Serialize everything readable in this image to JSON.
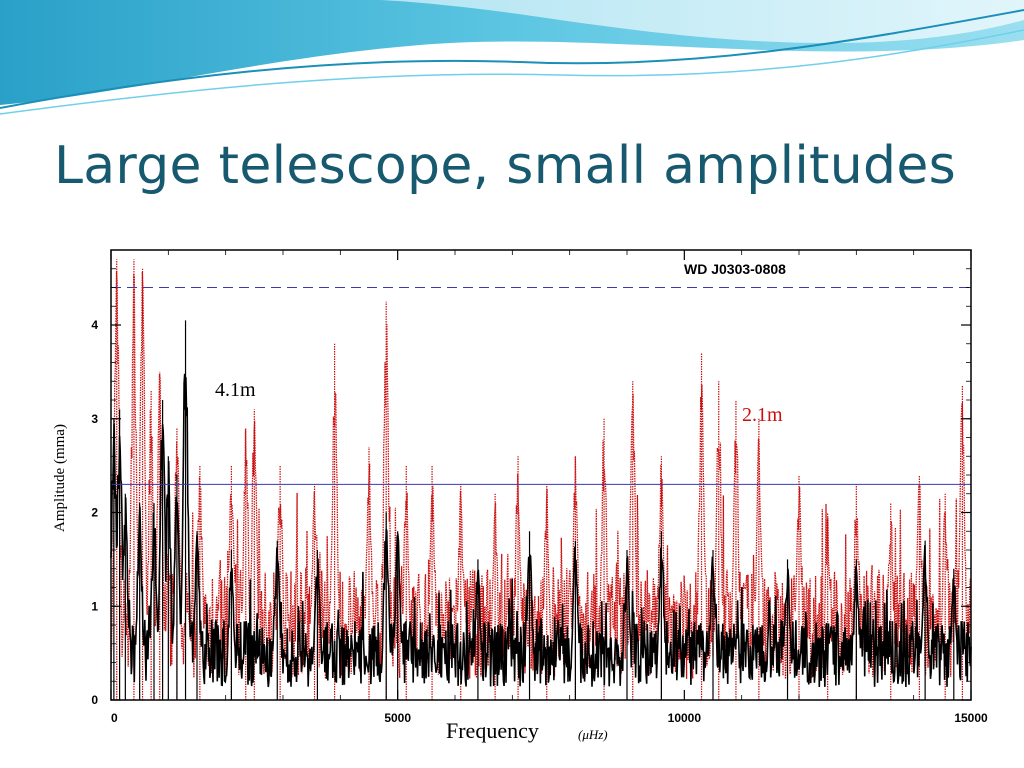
{
  "slide": {
    "title": "Large telescope, small amplitudes"
  },
  "colors": {
    "title": "#17596f",
    "black_series": "#000000",
    "red_series": "#cc1010",
    "threshold_line": "#3a3ab0"
  },
  "chart_data": {
    "type": "line",
    "title": "WD J0303-0808",
    "xlabel": "Frequency",
    "xunit": "(μHz)",
    "ylabel": "Amplitude (mma)",
    "xlim": [
      0,
      15000
    ],
    "ylim": [
      0,
      4.8
    ],
    "x_ticks": [
      0,
      5000,
      10000,
      15000
    ],
    "y_ticks": [
      0,
      1,
      2,
      3,
      4
    ],
    "series": [
      {
        "name": "4.1m",
        "color": "#000000",
        "style": "solid",
        "noise_mean": 0.55,
        "peaks": [
          {
            "x": 50,
            "y": 3.0
          },
          {
            "x": 150,
            "y": 3.1
          },
          {
            "x": 250,
            "y": 2.2
          },
          {
            "x": 500,
            "y": 2.1
          },
          {
            "x": 750,
            "y": 2.1
          },
          {
            "x": 900,
            "y": 3.2
          },
          {
            "x": 1000,
            "y": 2.6
          },
          {
            "x": 1150,
            "y": 2.4
          },
          {
            "x": 1300,
            "y": 4.05
          },
          {
            "x": 1500,
            "y": 1.8
          },
          {
            "x": 2100,
            "y": 1.6
          },
          {
            "x": 2900,
            "y": 1.7
          },
          {
            "x": 3600,
            "y": 1.6
          },
          {
            "x": 4800,
            "y": 2.0
          },
          {
            "x": 5000,
            "y": 1.8
          },
          {
            "x": 6400,
            "y": 1.5
          },
          {
            "x": 7300,
            "y": 1.8
          },
          {
            "x": 8100,
            "y": 1.7
          },
          {
            "x": 9000,
            "y": 1.6
          },
          {
            "x": 9600,
            "y": 1.8
          },
          {
            "x": 10500,
            "y": 1.6
          },
          {
            "x": 11800,
            "y": 1.5
          },
          {
            "x": 13000,
            "y": 1.5
          },
          {
            "x": 14200,
            "y": 1.7
          },
          {
            "x": 14700,
            "y": 1.4
          }
        ],
        "threshold": 4.4
      },
      {
        "name": "2.1m",
        "color": "#cc1010",
        "style": "dotted",
        "noise_mean": 0.9,
        "peaks": [
          {
            "x": 100,
            "y": 4.7
          },
          {
            "x": 400,
            "y": 4.7
          },
          {
            "x": 550,
            "y": 4.6
          },
          {
            "x": 700,
            "y": 3.3
          },
          {
            "x": 850,
            "y": 3.5
          },
          {
            "x": 1150,
            "y": 2.9
          },
          {
            "x": 1550,
            "y": 2.5
          },
          {
            "x": 2100,
            "y": 2.5
          },
          {
            "x": 2350,
            "y": 2.9
          },
          {
            "x": 2500,
            "y": 3.1
          },
          {
            "x": 2950,
            "y": 2.5
          },
          {
            "x": 3550,
            "y": 2.3
          },
          {
            "x": 3900,
            "y": 3.8
          },
          {
            "x": 4500,
            "y": 2.7
          },
          {
            "x": 4800,
            "y": 4.25
          },
          {
            "x": 5150,
            "y": 2.5
          },
          {
            "x": 5600,
            "y": 2.5
          },
          {
            "x": 6100,
            "y": 2.3
          },
          {
            "x": 6700,
            "y": 2.2
          },
          {
            "x": 7100,
            "y": 2.6
          },
          {
            "x": 7600,
            "y": 2.3
          },
          {
            "x": 8100,
            "y": 2.6
          },
          {
            "x": 8600,
            "y": 3.0
          },
          {
            "x": 9100,
            "y": 3.4
          },
          {
            "x": 9600,
            "y": 2.6
          },
          {
            "x": 10300,
            "y": 3.7
          },
          {
            "x": 10600,
            "y": 3.4
          },
          {
            "x": 10900,
            "y": 3.2
          },
          {
            "x": 11300,
            "y": 3.0
          },
          {
            "x": 12000,
            "y": 2.4
          },
          {
            "x": 12500,
            "y": 2.0
          },
          {
            "x": 13000,
            "y": 2.3
          },
          {
            "x": 13600,
            "y": 2.1
          },
          {
            "x": 14100,
            "y": 2.4
          },
          {
            "x": 14550,
            "y": 2.2
          },
          {
            "x": 14850,
            "y": 3.35
          }
        ],
        "threshold": 2.3
      }
    ],
    "annotations": [
      {
        "text": "4.1m",
        "color": "#000000",
        "x": 1650,
        "y": 3.35
      },
      {
        "text": "2.1m",
        "color": "#cc1010",
        "x": 11000,
        "y": 3.1
      }
    ],
    "grid": false
  }
}
